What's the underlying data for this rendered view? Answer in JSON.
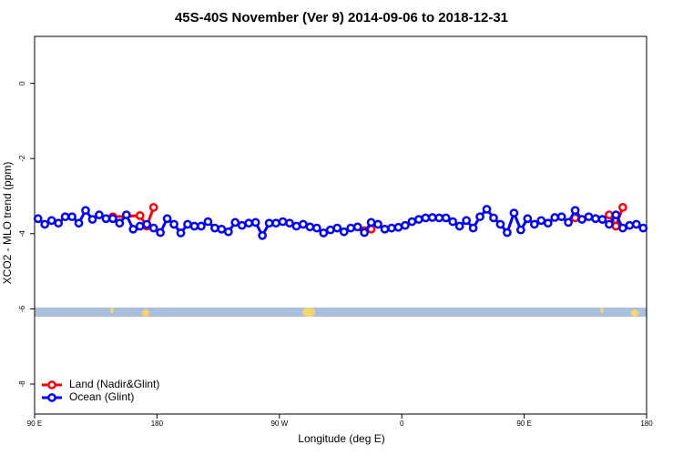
{
  "chart_data": {
    "type": "line",
    "title": "45S-40S November (Ver 9)   2014-09-06 to 2018-12-31",
    "xlabel": "Longitude (deg E)",
    "ylabel": "XCO2 - MLO trend (ppm)",
    "xlim": [
      90,
      540
    ],
    "xticks": [
      {
        "value": 90,
        "label": "90 E"
      },
      180,
      {
        "value": 270,
        "label": "90 W"
      },
      {
        "value": 360,
        "label": "0"
      },
      {
        "value": 450,
        "label": "90 E"
      },
      {
        "value": 540,
        "label": "180"
      }
    ],
    "ylim": [
      -8.8,
      1.25
    ],
    "yticks": [
      0,
      -2,
      -4,
      -6,
      -8
    ],
    "legend": "bottom-left",
    "series": [
      {
        "name": "Land (Nadir&Glint)",
        "color": "#ff0000",
        "x": [
          147.5,
          167.5,
          172.5,
          177.5,
          182.5,
          332.5,
          337.5,
          342.5,
          487.5,
          492.5,
          512.5,
          517.5,
          522.5
        ],
        "values": [
          -3.55,
          -3.52,
          -3.8,
          -3.3,
          null,
          -3.92,
          -3.88,
          null,
          -3.58,
          null,
          -3.5,
          -3.8,
          -3.3
        ]
      },
      {
        "name": "Ocean (Glint)",
        "color": "#0000ff",
        "x": [
          92.5,
          97.5,
          102.5,
          107.5,
          112.5,
          117.5,
          122.5,
          127.5,
          132.5,
          137.5,
          142.5,
          147.5,
          152.5,
          157.5,
          162.5,
          167.5,
          172.5,
          177.5,
          182.5,
          187.5,
          192.5,
          197.5,
          202.5,
          207.5,
          212.5,
          217.5,
          222.5,
          227.5,
          232.5,
          237.5,
          242.5,
          247.5,
          252.5,
          257.5,
          262.5,
          267.5,
          272.5,
          277.5,
          282.5,
          287.5,
          292.5,
          297.5,
          302.5,
          307.5,
          312.5,
          317.5,
          322.5,
          327.5,
          332.5,
          337.5,
          342.5,
          347.5,
          352.5,
          357.5,
          362.5,
          367.5,
          372.5,
          377.5,
          382.5,
          387.5,
          392.5,
          397.5,
          402.5,
          407.5,
          412.5,
          417.5,
          422.5,
          427.5,
          432.5,
          437.5,
          442.5,
          447.5,
          452.5,
          457.5,
          462.5,
          467.5,
          472.5,
          477.5,
          482.5,
          487.5,
          492.5,
          497.5,
          502.5,
          507.5,
          512.5,
          517.5,
          522.5,
          527.5,
          532.5,
          537.5
        ],
        "values": [
          -3.6,
          -3.75,
          -3.65,
          -3.72,
          -3.55,
          -3.55,
          -3.72,
          -3.38,
          -3.62,
          -3.5,
          -3.6,
          -3.6,
          -3.72,
          -3.5,
          -3.88,
          -3.8,
          -3.75,
          -3.85,
          -3.97,
          -3.6,
          -3.75,
          -3.98,
          -3.75,
          -3.8,
          -3.8,
          -3.68,
          -3.85,
          -3.88,
          -3.95,
          -3.7,
          -3.78,
          -3.72,
          -3.7,
          -4.05,
          -3.72,
          -3.72,
          -3.68,
          -3.72,
          -3.8,
          -3.75,
          -3.82,
          -3.85,
          -3.98,
          -3.9,
          -3.85,
          -3.95,
          -3.85,
          -3.82,
          -3.97,
          -3.7,
          -3.75,
          -3.88,
          -3.85,
          -3.83,
          -3.78,
          -3.68,
          -3.62,
          -3.58,
          -3.57,
          -3.58,
          -3.58,
          -3.68,
          -3.8,
          -3.65,
          -3.85,
          -3.55,
          -3.35,
          -3.58,
          -3.75,
          -3.97,
          -3.45,
          -3.9,
          -3.6,
          -3.75,
          -3.65,
          -3.72,
          -3.57,
          -3.55,
          -3.7,
          -3.38,
          -3.62,
          -3.55,
          -3.6,
          -3.62,
          -3.75,
          -3.5,
          -3.85,
          -3.78,
          -3.75,
          -3.85
        ]
      }
    ]
  }
}
